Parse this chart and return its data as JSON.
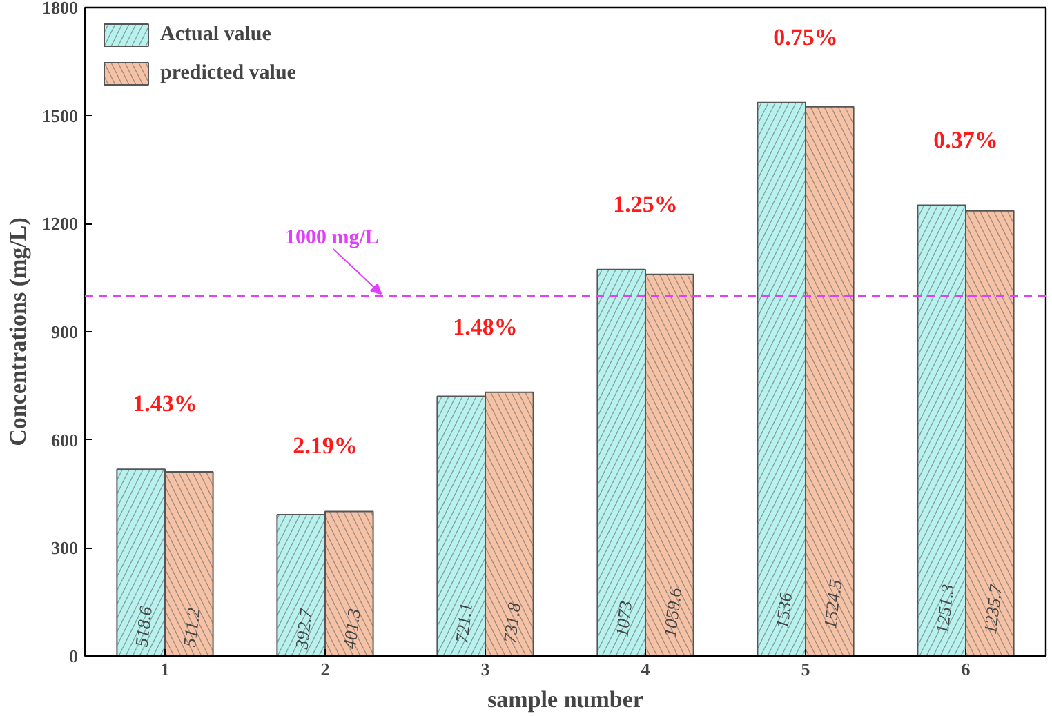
{
  "chart_data": {
    "type": "bar",
    "xlabel": "sample number",
    "ylabel": "Concentrations (mg/L)",
    "categories": [
      "1",
      "2",
      "3",
      "4",
      "5",
      "6"
    ],
    "series": [
      {
        "name": "Actual value",
        "color": "#b8f2ee",
        "values": [
          518.6,
          392.7,
          721.1,
          1073,
          1536,
          1251.3
        ]
      },
      {
        "name": "predicted value",
        "color": "#f6c2a6",
        "values": [
          511.2,
          401.3,
          731.8,
          1059.6,
          1524.5,
          1235.7
        ]
      }
    ],
    "ylim": [
      0,
      1800
    ],
    "yticks": [
      0,
      300,
      600,
      900,
      1200,
      1500,
      1800
    ],
    "data_labels": true,
    "legend": "top left",
    "grid": false,
    "ref_lines": [
      {
        "axis": "y",
        "value": 1000,
        "label": "1000 mg/L",
        "color": "#e040fb",
        "line_style": "dashed"
      }
    ],
    "annotations": [
      "1.43%",
      "2.19%",
      "1.48%",
      "1.25%",
      "0.75%",
      "0.37%"
    ]
  }
}
